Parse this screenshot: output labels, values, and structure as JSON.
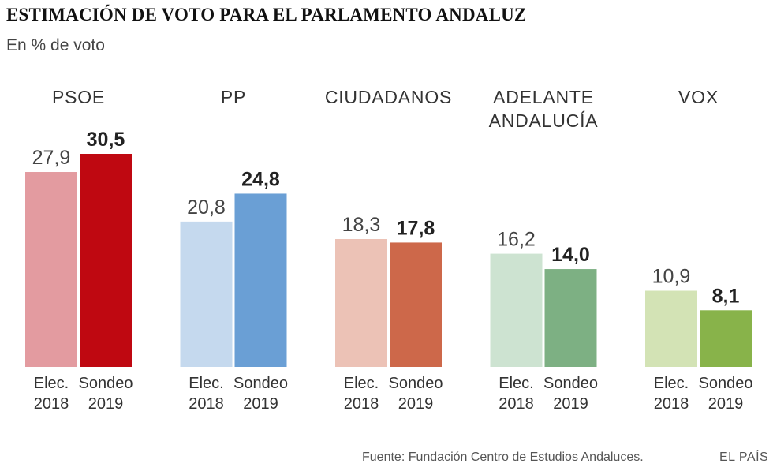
{
  "chart_data": {
    "type": "bar",
    "title": "ESTIMACIÓN DE VOTO PARA EL PARLAMENTO ANDALUZ",
    "subtitle": "En % de voto",
    "categories": [
      {
        "line1": "Elec.",
        "line2": "2018"
      },
      {
        "line1": "Sondeo",
        "line2": "2019"
      }
    ],
    "groups": [
      {
        "party": [
          "PSOE"
        ],
        "values": [
          27.9,
          30.5
        ],
        "labels": [
          "27,9",
          "30,5"
        ],
        "colors": [
          "#e39ba0",
          "#bf0811"
        ]
      },
      {
        "party": [
          "PP"
        ],
        "values": [
          20.8,
          24.8
        ],
        "labels": [
          "20,8",
          "24,8"
        ],
        "colors": [
          "#c5d9ee",
          "#6a9fd5"
        ]
      },
      {
        "party": [
          "CIUDADANOS"
        ],
        "values": [
          18.3,
          17.8
        ],
        "labels": [
          "18,3",
          "17,8"
        ],
        "colors": [
          "#ecc2b6",
          "#cd684a"
        ]
      },
      {
        "party": [
          "ADELANTE",
          "ANDALUCÍA"
        ],
        "values": [
          16.2,
          14.0
        ],
        "labels": [
          "16,2",
          "14,0"
        ],
        "colors": [
          "#cde3d1",
          "#7db083"
        ]
      },
      {
        "party": [
          "VOX"
        ],
        "values": [
          10.9,
          8.1
        ],
        "labels": [
          "10,9",
          "8,1"
        ],
        "colors": [
          "#d3e3b5",
          "#88b34a"
        ]
      }
    ],
    "ylim": [
      0,
      30.5
    ],
    "xlabel": "",
    "ylabel": ""
  },
  "footer": {
    "source": "Fuente: Fundación Centro de Estudios Andaluces.",
    "brand": "EL PAÍS"
  }
}
